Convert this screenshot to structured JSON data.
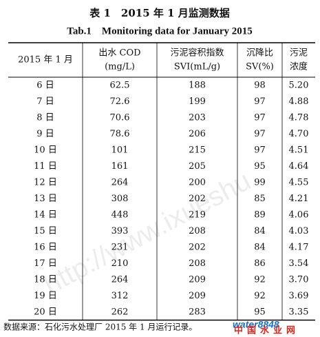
{
  "title": "表 1　2015 年 1 月监测数据",
  "subtitle": "Tab.1　Monitoring data for January 2015",
  "table": {
    "header": [
      [
        "2015 年 1 月"
      ],
      [
        "出水 COD",
        "(mg/L)"
      ],
      [
        "污泥容积指数",
        "SVI(mL/g)"
      ],
      [
        "沉降比",
        "SV(%)"
      ],
      [
        "污泥",
        "浓度"
      ]
    ],
    "rows": [
      [
        "6 日",
        "62.5",
        "188",
        "98",
        "5.20"
      ],
      [
        "7 日",
        "72.6",
        "199",
        "97",
        "4.88"
      ],
      [
        "8 日",
        "70.6",
        "203",
        "97",
        "4.78"
      ],
      [
        "9 日",
        "78.6",
        "206",
        "97",
        "4.70"
      ],
      [
        "10 日",
        "101",
        "215",
        "97",
        "4.51"
      ],
      [
        "11 日",
        "161",
        "205",
        "95",
        "4.64"
      ],
      [
        "12 日",
        "264",
        "200",
        "99",
        "4.55"
      ],
      [
        "13 日",
        "308",
        "202",
        "85",
        "4.21"
      ],
      [
        "14 日",
        "448",
        "219",
        "89",
        "4.06"
      ],
      [
        "15 日",
        "393",
        "208",
        "84",
        "4.03"
      ],
      [
        "16 日",
        "231",
        "202",
        "84",
        "4.17"
      ],
      [
        "17 日",
        "210",
        "208",
        "86",
        "3.54"
      ],
      [
        "18 日",
        "264",
        "209",
        "92",
        "3.70"
      ],
      [
        "19 日",
        "312",
        "209",
        "92",
        "3.69"
      ],
      [
        "20 日",
        "262",
        "283",
        "95",
        "3.35"
      ]
    ]
  },
  "footer": "数据来源：石化污水处理厂 2015 年 1 月运行记录。",
  "watermark": "http://www.ixueshu",
  "logo": {
    "brand": "water8848",
    "site": "中国水业网"
  }
}
